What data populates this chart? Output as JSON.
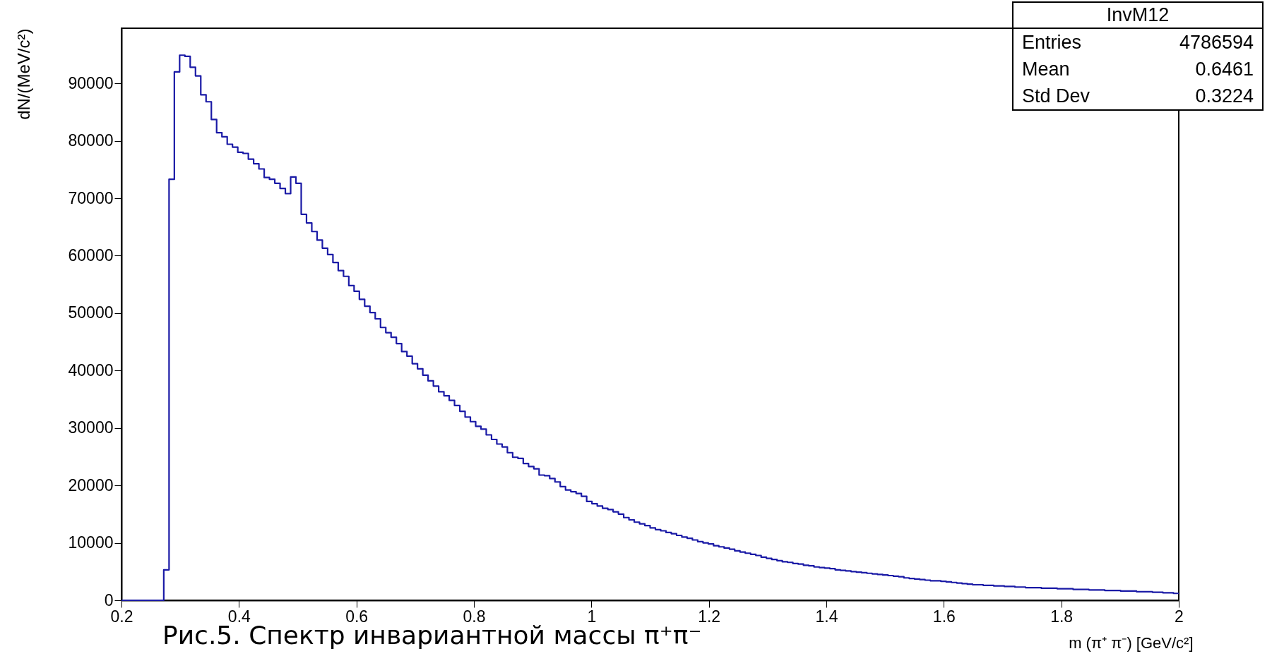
{
  "chart_data": {
    "type": "histogram",
    "xlabel": "m (π⁺ π⁻) [GeV/c²]",
    "ylabel": "dN/(MeV/c²)",
    "annotations": [
      "InvM12",
      "Entries 4786594",
      "Mean 0.6461",
      "Std Dev 0.3224",
      "Рис.5. Спектр инвариантной массы π⁺π⁻"
    ],
    "bins": [
      0.2,
      0.209,
      0.218,
      0.227,
      0.236,
      0.245,
      0.254,
      0.263,
      0.272,
      0.281,
      0.29,
      0.299,
      0.308,
      0.317,
      0.326,
      0.335,
      0.344,
      0.353,
      0.362,
      0.371,
      0.38,
      0.389,
      0.398,
      0.407,
      0.416,
      0.425,
      0.434,
      0.443,
      0.452,
      0.461,
      0.47,
      0.479,
      0.488,
      0.497,
      0.506,
      0.515,
      0.524,
      0.533,
      0.542,
      0.551,
      0.56,
      0.569,
      0.578,
      0.587,
      0.596,
      0.605,
      0.614,
      0.623,
      0.632,
      0.641,
      0.65,
      0.659,
      0.668,
      0.677,
      0.686,
      0.695,
      0.704,
      0.713,
      0.722,
      0.731,
      0.74,
      0.749,
      0.758,
      0.767,
      0.776,
      0.785,
      0.794,
      0.803,
      0.812,
      0.821,
      0.83,
      0.839,
      0.848,
      0.857,
      0.866,
      0.875,
      0.884,
      0.893,
      0.902,
      0.911,
      0.92,
      0.929,
      0.938,
      0.947,
      0.956,
      0.965,
      0.974,
      0.983,
      0.992,
      1.001,
      1.01,
      1.019,
      1.028,
      1.037,
      1.046,
      1.055,
      1.064,
      1.073,
      1.082,
      1.091,
      1.1,
      1.109,
      1.118,
      1.127,
      1.136,
      1.145,
      1.154,
      1.163,
      1.172,
      1.181,
      1.19,
      1.199,
      1.208,
      1.217,
      1.226,
      1.235,
      1.244,
      1.253,
      1.262,
      1.271,
      1.28,
      1.289,
      1.298,
      1.307,
      1.316,
      1.325,
      1.334,
      1.343,
      1.352,
      1.361,
      1.37,
      1.379,
      1.388,
      1.397,
      1.406,
      1.415,
      1.424,
      1.433,
      1.442,
      1.451,
      1.46,
      1.469,
      1.478,
      1.487,
      1.496,
      1.505,
      1.514,
      1.523,
      1.532,
      1.541,
      1.55,
      1.559,
      1.568,
      1.577,
      1.586,
      1.595,
      1.604,
      1.613,
      1.622,
      1.631,
      1.64,
      1.649,
      1.658,
      1.667,
      1.676,
      1.685,
      1.694,
      1.703,
      1.712,
      1.721,
      1.73,
      1.739,
      1.748,
      1.757,
      1.766,
      1.775,
      1.784,
      1.793,
      1.802,
      1.811,
      1.82,
      1.829,
      1.838,
      1.847,
      1.856,
      1.865,
      1.874,
      1.883,
      1.892,
      1.901,
      1.91,
      1.919,
      1.928,
      1.937,
      1.946,
      1.955,
      1.964,
      1.973,
      1.982,
      1.991,
      2.0
    ],
    "values": [
      0,
      0,
      0,
      0,
      0,
      0,
      0,
      0,
      5300,
      73300,
      92000,
      94900,
      94700,
      92800,
      91300,
      88000,
      86800,
      83700,
      81400,
      80700,
      79400,
      78900,
      78000,
      77800,
      76800,
      76000,
      75100,
      73600,
      73300,
      72600,
      71700,
      70800,
      73700,
      72600,
      67200,
      65700,
      64200,
      62700,
      61300,
      60200,
      58800,
      57400,
      56400,
      54800,
      53800,
      52400,
      51200,
      50100,
      49000,
      47500,
      46600,
      45800,
      44700,
      43300,
      42500,
      41200,
      40300,
      39200,
      38200,
      37300,
      36300,
      35600,
      34800,
      33900,
      32900,
      31900,
      31100,
      30300,
      29800,
      28800,
      28000,
      27200,
      26700,
      25700,
      24900,
      24700,
      23800,
      23300,
      22900,
      21800,
      21700,
      21200,
      20600,
      19800,
      19200,
      18900,
      18600,
      18100,
      17200,
      16800,
      16400,
      16000,
      15800,
      15400,
      15000,
      14400,
      14000,
      13600,
      13300,
      13000,
      12600,
      12300,
      12100,
      11800,
      11600,
      11300,
      11000,
      10800,
      10500,
      10200,
      10000,
      9800,
      9500,
      9300,
      9100,
      8900,
      8600,
      8400,
      8200,
      8000,
      7800,
      7500,
      7300,
      7100,
      6900,
      6700,
      6600,
      6400,
      6300,
      6100,
      6000,
      5800,
      5700,
      5600,
      5500,
      5300,
      5200,
      5100,
      5000,
      4900,
      4800,
      4700,
      4600,
      4500,
      4400,
      4300,
      4200,
      4100,
      3900,
      3800,
      3700,
      3600,
      3500,
      3400,
      3400,
      3300,
      3200,
      3100,
      3000,
      2900,
      2800,
      2700,
      2700,
      2600,
      2600,
      2500,
      2500,
      2400,
      2400,
      2300,
      2300,
      2200,
      2200,
      2200,
      2100,
      2100,
      2100,
      2000,
      2000,
      2000,
      1900,
      1900,
      1900,
      1800,
      1800,
      1800,
      1700,
      1700,
      1700,
      1600,
      1600,
      1600,
      1500,
      1500,
      1500,
      1400,
      1400,
      1300,
      1300,
      1200
    ],
    "color": "#1a1aa6",
    "xlim": [
      0.2,
      2.0
    ],
    "xticks": [
      0.2,
      0.4,
      0.6,
      0.8,
      1,
      1.2,
      1.4,
      1.6,
      1.8,
      2
    ],
    "ylim": [
      0,
      99600
    ],
    "yticks": [
      0,
      10000,
      20000,
      30000,
      40000,
      50000,
      60000,
      70000,
      80000,
      90000
    ],
    "grid": false
  }
}
